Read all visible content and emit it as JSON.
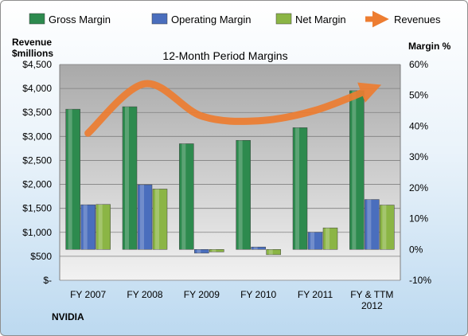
{
  "chart_data": {
    "type": "bar",
    "title": "12-Month Period Margins",
    "categories": [
      [
        "FY 2007"
      ],
      [
        "FY 2008"
      ],
      [
        "FY 2009"
      ],
      [
        "FY 2010"
      ],
      [
        "FY 2011"
      ],
      [
        "FY & TTM",
        "2012"
      ]
    ],
    "y_left": {
      "label_lines": [
        "Revenue",
        "$millions"
      ],
      "ticks": [
        "$-",
        "$500",
        "$1,000",
        "$1,500",
        "$2,000",
        "$2,500",
        "$3,000",
        "$3,500",
        "$4,000",
        "$4,500"
      ],
      "range": [
        0,
        4500
      ]
    },
    "y_right": {
      "label": "Margin %",
      "ticks": [
        "-10%",
        "0%",
        "10%",
        "20%",
        "30%",
        "40%",
        "50%",
        "60%"
      ],
      "range": [
        -10,
        60
      ]
    },
    "series": [
      {
        "name": "Gross Margin",
        "kind": "bar",
        "axis": "right",
        "color": "#2d8a4e",
        "values": [
          45.5,
          46.3,
          34.3,
          35.4,
          39.5,
          51.5
        ]
      },
      {
        "name": "Operating Margin",
        "kind": "bar",
        "axis": "right",
        "color": "#4a6ebd",
        "values": [
          14.5,
          21.0,
          -1.2,
          0.8,
          5.6,
          16.2
        ]
      },
      {
        "name": "Net Margin",
        "kind": "bar",
        "axis": "right",
        "color": "#8bb545",
        "values": [
          14.6,
          19.6,
          -0.8,
          -1.7,
          7.0,
          14.4
        ]
      },
      {
        "name": "Revenues",
        "kind": "line",
        "axis": "left",
        "color": "#ed7d31",
        "values": [
          3068,
          4098,
          3425,
          3326,
          3543,
          4001
        ]
      }
    ],
    "legend_position": "top",
    "grid": true,
    "annotation": "NVIDIA"
  }
}
